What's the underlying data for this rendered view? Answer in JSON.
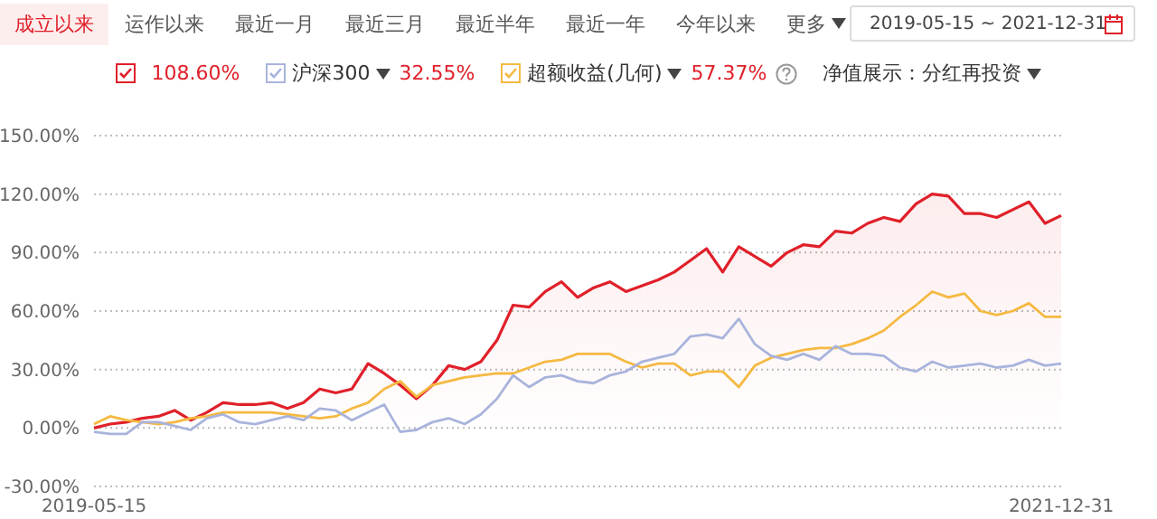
{
  "chart_data": {
    "type": "line",
    "categories": [
      "2019-05-15",
      null,
      null,
      null,
      null,
      null,
      null,
      null,
      null,
      null,
      null,
      null,
      null,
      null,
      null,
      null,
      null,
      null,
      null,
      null,
      null,
      null,
      null,
      null,
      null,
      null,
      null,
      null,
      null,
      null,
      null,
      null,
      null,
      null,
      null,
      null,
      null,
      null,
      null,
      null,
      null,
      null,
      null,
      null,
      null,
      null,
      null,
      null,
      null,
      null,
      null,
      null,
      null,
      null,
      null,
      null,
      null,
      null,
      null,
      null,
      "2021-12-31"
    ],
    "series": [
      {
        "type": "area",
        "color": "#e0202a",
        "values": [
          0,
          2,
          3,
          5,
          6,
          9,
          4,
          8,
          13,
          12,
          12,
          13,
          10,
          13,
          20,
          18,
          20,
          33,
          28,
          22,
          15,
          22,
          32,
          30,
          34,
          45,
          63,
          62,
          70,
          75,
          67,
          72,
          75,
          70,
          73,
          76,
          80,
          86,
          92,
          80,
          93,
          88,
          83,
          90,
          94,
          93,
          101,
          100,
          105,
          108,
          106,
          115,
          120,
          119,
          110,
          110,
          108,
          112,
          116,
          105,
          109
        ]
      },
      {
        "name": "沪深300",
        "color": "#a9b4dc",
        "values": [
          -2,
          -3,
          -3,
          3,
          3,
          1,
          -1,
          5,
          7,
          3,
          2,
          4,
          6,
          4,
          10,
          9,
          4,
          8,
          12,
          -2,
          -1,
          3,
          5,
          2,
          7,
          15,
          27,
          21,
          26,
          27,
          24,
          23,
          27,
          29,
          34,
          36,
          38,
          47,
          48,
          46,
          56,
          43,
          37,
          35,
          38,
          35,
          42,
          38,
          38,
          37,
          31,
          29,
          34,
          31,
          32,
          33,
          31,
          32,
          35,
          32,
          33
        ]
      },
      {
        "name": "超额收益(几何)",
        "color": "#f5b942",
        "values": [
          2,
          6,
          4,
          3,
          2,
          3,
          5,
          6,
          8,
          8,
          8,
          8,
          7,
          6,
          5,
          6,
          10,
          13,
          20,
          24,
          16,
          22,
          24,
          26,
          27,
          28,
          28,
          31,
          34,
          35,
          38,
          38,
          38,
          34,
          31,
          33,
          33,
          27,
          29,
          29,
          21,
          32,
          36,
          38,
          40,
          41,
          41,
          43,
          46,
          50,
          57,
          63,
          70,
          67,
          69,
          60,
          58,
          60,
          64,
          57,
          57
        ]
      }
    ],
    "ylim": [
      -30,
      150
    ],
    "yticks": [
      {
        "value": -30,
        "label": "-30.00%"
      },
      {
        "value": 0,
        "label": "0.00%"
      },
      {
        "value": 30,
        "label": "30.00%"
      },
      {
        "value": 60,
        "label": "60.00%"
      },
      {
        "value": 90,
        "label": "90.00%"
      },
      {
        "value": 120,
        "label": "120.00%"
      },
      {
        "value": 150,
        "label": "150.00%"
      }
    ],
    "grid": "y",
    "legend": "top",
    "marker": "none",
    "line_style": "solid",
    "annotations": [
      "成立以来",
      "运作以来",
      "最近一月",
      "最近三月",
      "最近半年",
      "最近一年",
      "今年以来",
      "更多",
      "2019-05-15 ~ 2021-12-31",
      "净值展示：分红再投资",
      "108.60%",
      "32.55%",
      "57.37%"
    ]
  }
}
